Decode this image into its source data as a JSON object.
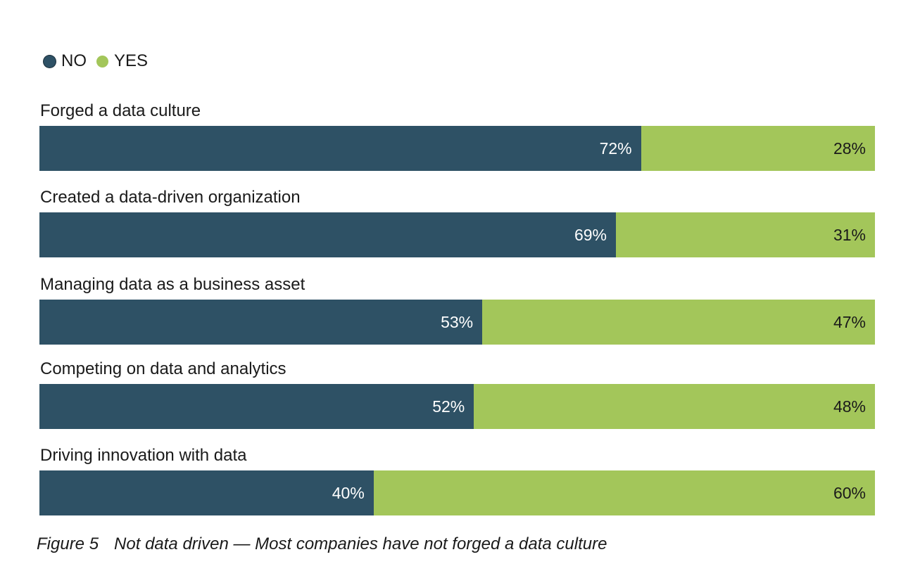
{
  "colors": {
    "no": "#2e5165",
    "yes": "#a3c65a",
    "no_text": "#ffffff",
    "yes_text": "#1a1a1a"
  },
  "chart_data": {
    "type": "bar",
    "orientation": "horizontal",
    "stacked": true,
    "normalized": true,
    "title": "",
    "legend": {
      "position": "top-left",
      "entries": [
        "NO",
        "YES"
      ]
    },
    "categories": [
      "Forged a data culture",
      "Created a data-driven organization",
      "Managing data as a business asset",
      "Competing on data and analytics",
      "Driving innovation with data"
    ],
    "series": [
      {
        "name": "NO",
        "values": [
          72,
          69,
          53,
          52,
          40
        ],
        "labels": [
          "72%",
          "69%",
          "53%",
          "52%",
          "40%"
        ]
      },
      {
        "name": "YES",
        "values": [
          28,
          31,
          47,
          48,
          60
        ],
        "labels": [
          "28%",
          "31%",
          "47%",
          "48%",
          "60%"
        ]
      }
    ],
    "xlim": [
      0,
      100
    ],
    "unit": "%"
  },
  "caption": {
    "figure_number": "Figure 5",
    "text": "Not data driven — Most companies have not forged a data culture"
  }
}
